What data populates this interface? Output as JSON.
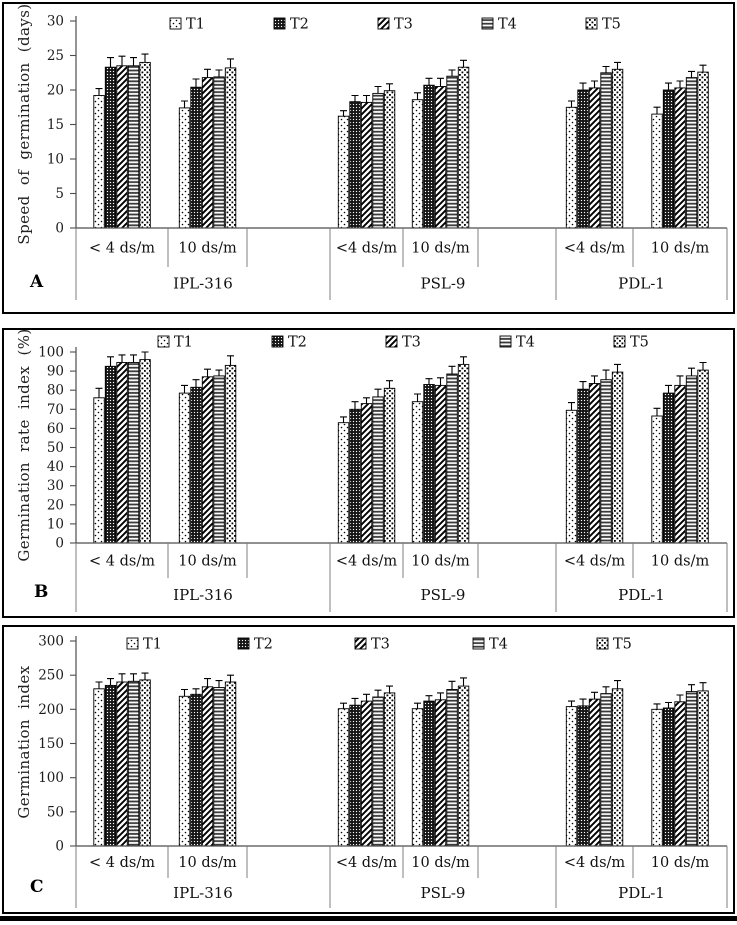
{
  "figure": {
    "description": "Three stacked grouped-bar panels comparing treatments T1-T5 for lentil genotypes under two salinity levels",
    "accent_black": "#000000",
    "grid_line_gray": "#7f7f7f",
    "axis_gray": "#4d4d4d"
  },
  "legend": [
    {
      "label": "T1",
      "pattern": "light-dots"
    },
    {
      "label": "T2",
      "pattern": "dark-mesh"
    },
    {
      "label": "T3",
      "pattern": "diagonal-stripes"
    },
    {
      "label": "T4",
      "pattern": "horizontal-lines"
    },
    {
      "label": "T5",
      "pattern": "dotted-diamond"
    }
  ],
  "chart_data": [
    {
      "panel_label": "A",
      "type": "bar",
      "title": "",
      "ylabel": "Speed of germination (days)",
      "xlabel": "",
      "ylim": [
        0,
        30
      ],
      "yticks": [
        0,
        5,
        10,
        15,
        20,
        25,
        30
      ],
      "legend_entries": [
        "T1",
        "T2",
        "T3",
        "T4",
        "T5"
      ],
      "legend_position": "top",
      "grid": false,
      "x_axis": {
        "genotypes": [
          "IPL-316",
          "PSL-9",
          "PDL-1"
        ],
        "salinity": [
          [
            "< 4 ds/m",
            "10 ds/m"
          ],
          [
            "<4 ds/m",
            "10 ds/m"
          ],
          [
            "<4 ds/m",
            "10 ds/m"
          ]
        ]
      },
      "groups": [
        {
          "genotype": "IPL-316",
          "salinity": "< 4 ds/m",
          "values": [
            19.2,
            23.3,
            23.5,
            23.5,
            24.0
          ],
          "errors": [
            1.0,
            1.4,
            1.4,
            1.2,
            1.2
          ]
        },
        {
          "genotype": "IPL-316",
          "salinity": "10 ds/m",
          "values": [
            17.4,
            20.4,
            21.8,
            21.9,
            23.2
          ],
          "errors": [
            1.0,
            1.2,
            1.2,
            1.0,
            1.3
          ]
        },
        {
          "genotype": "PSL-9",
          "salinity": "<4 ds/m",
          "values": [
            16.2,
            18.3,
            18.2,
            19.5,
            19.9
          ],
          "errors": [
            0.8,
            0.9,
            1.0,
            1.0,
            1.0
          ]
        },
        {
          "genotype": "PSL-9",
          "salinity": "10 ds/m",
          "values": [
            18.6,
            20.7,
            20.5,
            22.0,
            23.3
          ],
          "errors": [
            1.0,
            1.0,
            1.2,
            0.9,
            1.0
          ]
        },
        {
          "genotype": "PDL-1",
          "salinity": "<4 ds/m",
          "values": [
            17.5,
            20.0,
            20.3,
            22.5,
            23.0
          ],
          "errors": [
            0.9,
            1.0,
            1.0,
            0.9,
            1.0
          ]
        },
        {
          "genotype": "PDL-1",
          "salinity": "10 ds/m",
          "values": [
            16.5,
            20.0,
            20.3,
            21.8,
            22.6
          ],
          "errors": [
            1.0,
            1.0,
            1.0,
            0.9,
            1.0
          ]
        }
      ]
    },
    {
      "panel_label": "B",
      "type": "bar",
      "title": "",
      "ylabel": "Germination rate index (%)",
      "xlabel": "",
      "ylim": [
        0,
        100
      ],
      "yticks": [
        0,
        10,
        20,
        30,
        40,
        50,
        60,
        70,
        80,
        90,
        100
      ],
      "legend_entries": [
        "T1",
        "T2",
        "T3",
        "T4",
        "T5"
      ],
      "legend_position": "top",
      "grid": false,
      "x_axis": {
        "genotypes": [
          "IPL-316",
          "PSL-9",
          "PDL-1"
        ],
        "salinity": [
          [
            "< 4 ds/m",
            "10 ds/m"
          ],
          [
            "<4 ds/m",
            "10 ds/m"
          ],
          [
            "<4 ds/m",
            "10 ds/m"
          ]
        ]
      },
      "groups": [
        {
          "genotype": "IPL-316",
          "salinity": "< 4 ds/m",
          "values": [
            76.0,
            92.5,
            94.5,
            94.5,
            96.0
          ],
          "errors": [
            5,
            5,
            4,
            4,
            4
          ]
        },
        {
          "genotype": "IPL-316",
          "salinity": "10 ds/m",
          "values": [
            78.5,
            81.5,
            87.0,
            87.5,
            93.0
          ],
          "errors": [
            4,
            4,
            4,
            3,
            5
          ]
        },
        {
          "genotype": "PSL-9",
          "salinity": "<4 ds/m",
          "values": [
            63.0,
            70.0,
            73.0,
            76.5,
            81.0
          ],
          "errors": [
            3,
            4,
            3,
            4,
            4
          ]
        },
        {
          "genotype": "PSL-9",
          "salinity": "10 ds/m",
          "values": [
            74.0,
            83.0,
            82.5,
            88.5,
            93.5
          ],
          "errors": [
            4,
            3,
            4,
            4,
            4
          ]
        },
        {
          "genotype": "PDL-1",
          "salinity": "<4 ds/m",
          "values": [
            69.5,
            80.5,
            83.5,
            85.5,
            89.5
          ],
          "errors": [
            4,
            4,
            4,
            5,
            4
          ]
        },
        {
          "genotype": "PDL-1",
          "salinity": "10 ds/m",
          "values": [
            66.5,
            78.5,
            82.5,
            87.5,
            90.5
          ],
          "errors": [
            4,
            4,
            5,
            4,
            4
          ]
        }
      ]
    },
    {
      "panel_label": "C",
      "type": "bar",
      "title": "",
      "ylabel": "Germination index",
      "xlabel": "",
      "ylim": [
        0,
        300
      ],
      "yticks": [
        0,
        50,
        100,
        150,
        200,
        250,
        300
      ],
      "legend_entries": [
        "T1",
        "T2",
        "T3",
        "T4",
        "T5"
      ],
      "legend_position": "top",
      "grid": false,
      "x_axis": {
        "genotypes": [
          "IPL-316",
          "PSL-9",
          "PDL-1"
        ],
        "salinity": [
          [
            "< 4 ds/m",
            "10 ds/m"
          ],
          [
            "<4 ds/m",
            "10 ds/m"
          ],
          [
            "<4 ds/m",
            "10 ds/m"
          ]
        ]
      },
      "groups": [
        {
          "genotype": "IPL-316",
          "salinity": "< 4 ds/m",
          "values": [
            230,
            235,
            240,
            241,
            243
          ],
          "errors": [
            10,
            10,
            12,
            11,
            10
          ]
        },
        {
          "genotype": "IPL-316",
          "salinity": "10 ds/m",
          "values": [
            219,
            222,
            233,
            232,
            240
          ],
          "errors": [
            10,
            8,
            12,
            10,
            10
          ]
        },
        {
          "genotype": "PSL-9",
          "salinity": "<4 ds/m",
          "values": [
            201,
            206,
            212,
            218,
            224
          ],
          "errors": [
            8,
            10,
            10,
            10,
            10
          ]
        },
        {
          "genotype": "PSL-9",
          "salinity": "10 ds/m",
          "values": [
            201,
            212,
            214,
            229,
            234
          ],
          "errors": [
            8,
            8,
            10,
            12,
            12
          ]
        },
        {
          "genotype": "PDL-1",
          "salinity": "<4 ds/m",
          "values": [
            204,
            205,
            215,
            223,
            230
          ],
          "errors": [
            8,
            10,
            10,
            10,
            12
          ]
        },
        {
          "genotype": "PDL-1",
          "salinity": "10 ds/m",
          "values": [
            200,
            202,
            211,
            226,
            227
          ],
          "errors": [
            8,
            8,
            10,
            10,
            12
          ]
        }
      ]
    }
  ]
}
